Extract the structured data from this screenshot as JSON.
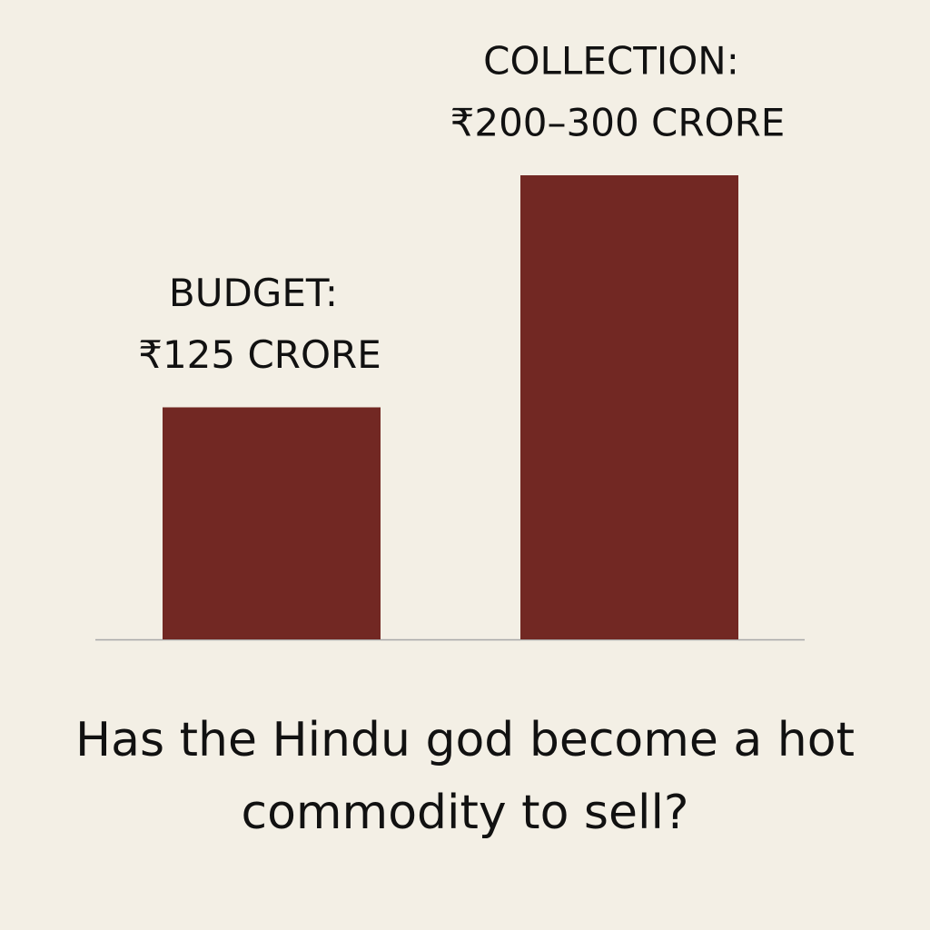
{
  "chart_data": {
    "type": "bar",
    "title": "Has the Hindu god become a hot commodity to sell?",
    "categories": [
      "BUDGET:",
      "COLLECTION:"
    ],
    "values": [
      125,
      250
    ],
    "value_labels": [
      "₹125 CRORE",
      "₹200–300 CRORE"
    ],
    "color": "#722823",
    "ylim": [
      0,
      250
    ]
  }
}
